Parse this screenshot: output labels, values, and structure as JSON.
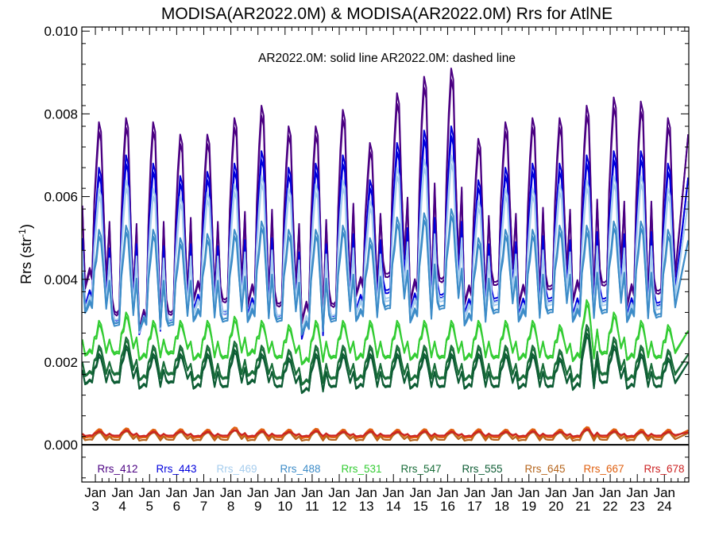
{
  "chart_data": {
    "type": "line",
    "title": "MODISA(AR2022.0M) & MODISA(AR2022.0M)  Rrs for AtlNE",
    "ylabel": "Rrs (str",
    "ylabel_sup": "-1",
    "ylabel_suffix": ")",
    "annotation": "AR2022.0M: solid line   AR2022.0M: dashed line",
    "ylim": [
      -0.0009,
      0.0101
    ],
    "xlim": [
      2.5,
      24.9
    ],
    "yticks": [
      {
        "value": 0.0,
        "label": "0.000"
      },
      {
        "value": 0.002,
        "label": "0.002"
      },
      {
        "value": 0.004,
        "label": "0.004"
      },
      {
        "value": 0.006,
        "label": "0.006"
      },
      {
        "value": 0.008,
        "label": "0.008"
      },
      {
        "value": 0.01,
        "label": "0.010"
      }
    ],
    "xticks": [
      {
        "value": 3,
        "month": "Jan",
        "year": "3"
      },
      {
        "value": 4,
        "month": "Jan",
        "year": "4"
      },
      {
        "value": 5,
        "month": "Jan",
        "year": "5"
      },
      {
        "value": 6,
        "month": "Jan",
        "year": "6"
      },
      {
        "value": 7,
        "month": "Jan",
        "year": "7"
      },
      {
        "value": 8,
        "month": "Jan",
        "year": "8"
      },
      {
        "value": 9,
        "month": "Jan",
        "year": "9"
      },
      {
        "value": 10,
        "month": "Jan",
        "year": "10"
      },
      {
        "value": 11,
        "month": "Jan",
        "year": "11"
      },
      {
        "value": 12,
        "month": "Jan",
        "year": "12"
      },
      {
        "value": 13,
        "month": "Jan",
        "year": "13"
      },
      {
        "value": 14,
        "month": "Jan",
        "year": "14"
      },
      {
        "value": 15,
        "month": "Jan",
        "year": "15"
      },
      {
        "value": 16,
        "month": "Jan",
        "year": "16"
      },
      {
        "value": 17,
        "month": "Jan",
        "year": "17"
      },
      {
        "value": 18,
        "month": "Jan",
        "year": "18"
      },
      {
        "value": 19,
        "month": "Jan",
        "year": "19"
      },
      {
        "value": 20,
        "month": "Jan",
        "year": "20"
      },
      {
        "value": 21,
        "month": "Jan",
        "year": "21"
      },
      {
        "value": 22,
        "month": "Jan",
        "year": "22"
      },
      {
        "value": 23,
        "month": "Jan",
        "year": "23"
      },
      {
        "value": 24,
        "month": "Jan",
        "year": "24"
      }
    ],
    "legend_placement": "bottom",
    "series": [
      {
        "name": "Rrs_412",
        "color": "#4b0082",
        "peaks": [
          0.0078,
          0.0079,
          0.0078,
          0.0075,
          0.0075,
          0.0079,
          0.0082,
          0.0077,
          0.0077,
          0.0081,
          0.0073,
          0.0085,
          0.0089,
          0.0091,
          0.0074,
          0.0078,
          0.0079,
          0.0079,
          0.0082,
          0.0084,
          0.0083,
          0.0079
        ],
        "troughs": [
          0.004,
          0.0032,
          0.003,
          0.0032,
          0.0037,
          0.0035,
          0.0036,
          0.0034,
          0.0032,
          0.0034,
          0.0038,
          0.0041,
          0.0037,
          0.004,
          0.0036,
          0.0039,
          0.0036,
          0.0038,
          0.0037,
          0.0039,
          0.0036,
          0.0037
        ]
      },
      {
        "name": "Rrs_443",
        "color": "#0000dd",
        "peaks": [
          0.0067,
          0.007,
          0.0068,
          0.0065,
          0.0066,
          0.0068,
          0.0071,
          0.0067,
          0.0068,
          0.007,
          0.0064,
          0.0073,
          0.0076,
          0.0077,
          0.0064,
          0.0067,
          0.0068,
          0.0068,
          0.007,
          0.0071,
          0.0071,
          0.0068
        ],
        "troughs": [
          0.0035,
          0.003,
          0.0029,
          0.003,
          0.0034,
          0.0032,
          0.0033,
          0.0031,
          0.0028,
          0.0031,
          0.0034,
          0.0037,
          0.0034,
          0.0036,
          0.0033,
          0.0035,
          0.0033,
          0.0035,
          0.0033,
          0.0035,
          0.0033,
          0.0034
        ]
      },
      {
        "name": "Rrs_469",
        "color": "#a6cdee",
        "peaks": [
          0.0062,
          0.0064,
          0.0062,
          0.006,
          0.0061,
          0.0063,
          0.0065,
          0.0062,
          0.0063,
          0.0064,
          0.0059,
          0.0067,
          0.0069,
          0.007,
          0.0059,
          0.0062,
          0.0062,
          0.0063,
          0.0064,
          0.0065,
          0.0065,
          0.0062
        ],
        "troughs": [
          0.0034,
          0.003,
          0.0029,
          0.003,
          0.0033,
          0.0032,
          0.0032,
          0.0031,
          0.0029,
          0.0031,
          0.0033,
          0.0035,
          0.0033,
          0.0035,
          0.0032,
          0.0034,
          0.0032,
          0.0034,
          0.0032,
          0.0034,
          0.0032,
          0.0033
        ]
      },
      {
        "name": "Rrs_488",
        "color": "#3d8cc8",
        "peaks": [
          0.0052,
          0.0053,
          0.0052,
          0.005,
          0.0051,
          0.0052,
          0.0054,
          0.0052,
          0.0052,
          0.0053,
          0.005,
          0.0055,
          0.0056,
          0.0057,
          0.005,
          0.0052,
          0.0052,
          0.0053,
          0.0053,
          0.0054,
          0.0054,
          0.0052
        ],
        "troughs": [
          0.0033,
          0.0029,
          0.0029,
          0.0029,
          0.0031,
          0.003,
          0.0031,
          0.003,
          0.0028,
          0.003,
          0.0031,
          0.0033,
          0.0031,
          0.0033,
          0.003,
          0.0032,
          0.0031,
          0.0032,
          0.0031,
          0.0032,
          0.0031,
          0.0031
        ]
      },
      {
        "name": "Rrs_531",
        "color": "#33cc33",
        "peaks": [
          0.003,
          0.0032,
          0.003,
          0.003,
          0.003,
          0.0031,
          0.003,
          0.0029,
          0.003,
          0.003,
          0.003,
          0.003,
          0.003,
          0.003,
          0.003,
          0.003,
          0.003,
          0.0029,
          0.0035,
          0.0032,
          0.003,
          0.0029
        ],
        "troughs": [
          0.0022,
          0.0022,
          0.0021,
          0.0022,
          0.0021,
          0.0021,
          0.0022,
          0.0021,
          0.002,
          0.0021,
          0.0021,
          0.0021,
          0.0021,
          0.0021,
          0.0021,
          0.0021,
          0.0021,
          0.0021,
          0.0021,
          0.0022,
          0.0021,
          0.0021
        ]
      },
      {
        "name": "Rrs_547",
        "color": "#1a6e3a",
        "peaks": [
          0.0024,
          0.0026,
          0.0024,
          0.0024,
          0.0024,
          0.0025,
          0.0024,
          0.0023,
          0.0024,
          0.0024,
          0.0024,
          0.0024,
          0.0024,
          0.0024,
          0.0024,
          0.0024,
          0.0024,
          0.0023,
          0.0029,
          0.0026,
          0.0024,
          0.0023
        ],
        "troughs": [
          0.0017,
          0.0017,
          0.0016,
          0.0017,
          0.0016,
          0.0016,
          0.0017,
          0.0016,
          0.0015,
          0.0016,
          0.0016,
          0.0016,
          0.0016,
          0.0016,
          0.0016,
          0.0016,
          0.0016,
          0.0016,
          0.0016,
          0.0017,
          0.0016,
          0.0016
        ]
      },
      {
        "name": "Rrs_555",
        "color": "#0d5c34",
        "peaks": [
          0.0022,
          0.0024,
          0.0022,
          0.0022,
          0.0022,
          0.0023,
          0.0022,
          0.0021,
          0.0022,
          0.0022,
          0.0022,
          0.0022,
          0.0022,
          0.0022,
          0.0022,
          0.0022,
          0.0022,
          0.0021,
          0.0027,
          0.0024,
          0.0022,
          0.0021
        ],
        "troughs": [
          0.0015,
          0.0015,
          0.0014,
          0.0015,
          0.0014,
          0.0014,
          0.0015,
          0.0014,
          0.0013,
          0.0014,
          0.0014,
          0.0014,
          0.0014,
          0.0014,
          0.0014,
          0.0014,
          0.0014,
          0.0014,
          0.0014,
          0.0015,
          0.0014,
          0.0014
        ]
      },
      {
        "name": "Rrs_645",
        "color": "#b5651d",
        "peaks": [
          0.0003,
          0.00033,
          0.0003,
          0.00031,
          0.0003,
          0.00035,
          0.00031,
          0.0003,
          0.00032,
          0.0003,
          0.00031,
          0.0003,
          0.00031,
          0.0003,
          0.00031,
          0.0003,
          0.00031,
          0.0003,
          0.00036,
          0.00031,
          0.0003,
          0.0003
        ],
        "troughs": [
          0.00012,
          0.00012,
          0.00011,
          0.00012,
          0.00011,
          0.00012,
          0.00011,
          0.00012,
          0.00011,
          0.00012,
          0.00011,
          0.00012,
          0.00011,
          0.00012,
          0.00011,
          0.00012,
          0.00011,
          0.00012,
          0.00011,
          0.00012,
          0.00011,
          0.00012
        ]
      },
      {
        "name": "Rrs_667",
        "color": "#e06010",
        "peaks": [
          0.00038,
          0.0004,
          0.00037,
          0.00038,
          0.00037,
          0.00042,
          0.00038,
          0.00037,
          0.00039,
          0.00037,
          0.00038,
          0.00037,
          0.00038,
          0.00037,
          0.00038,
          0.00037,
          0.00038,
          0.00037,
          0.00043,
          0.00038,
          0.00037,
          0.00037
        ],
        "troughs": [
          0.00018,
          0.00018,
          0.00017,
          0.00018,
          0.00017,
          0.00018,
          0.00017,
          0.00018,
          0.00017,
          0.00018,
          0.00017,
          0.00018,
          0.00017,
          0.00018,
          0.00017,
          0.00018,
          0.00017,
          0.00018,
          0.00017,
          0.00018,
          0.00017,
          0.00018
        ]
      },
      {
        "name": "Rrs_678",
        "color": "#cc2222",
        "peaks": [
          0.00033,
          0.00035,
          0.00032,
          0.00033,
          0.00032,
          0.00036,
          0.00033,
          0.00032,
          0.00034,
          0.00032,
          0.00033,
          0.00032,
          0.00033,
          0.00032,
          0.00033,
          0.00032,
          0.00033,
          0.00032,
          0.00038,
          0.00033,
          0.00032,
          0.00032
        ],
        "troughs": [
          0.00022,
          0.00022,
          0.00021,
          0.00022,
          0.00021,
          0.00022,
          0.00021,
          0.00022,
          0.00021,
          0.00022,
          0.00021,
          0.00022,
          0.00021,
          0.00022,
          0.00021,
          0.00022,
          0.00021,
          0.00022,
          0.00021,
          0.00022,
          0.00021,
          0.00022
        ]
      }
    ]
  }
}
